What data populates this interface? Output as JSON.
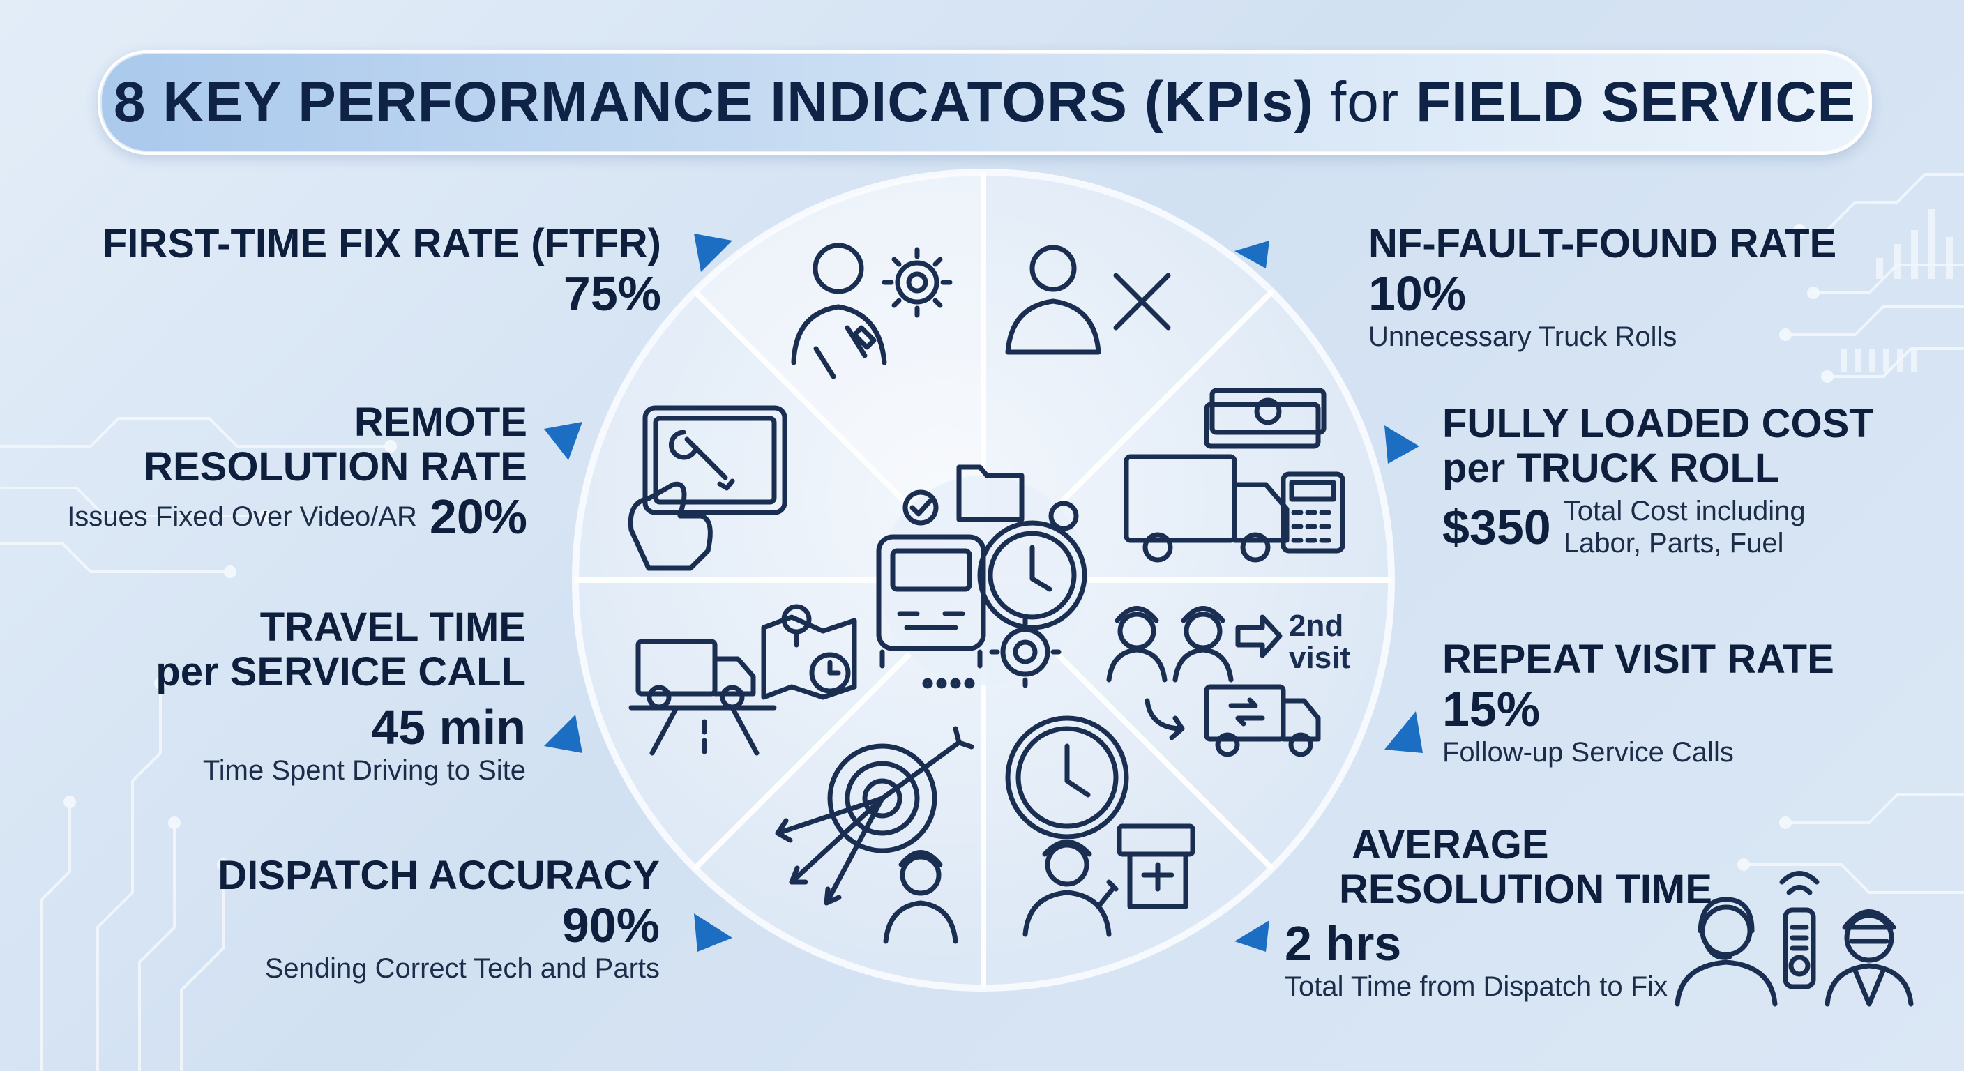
{
  "title": {
    "part1": "8 KEY PERFORMANCE INDICATORS (KPIs)",
    "part2": "for",
    "part3": "FIELD SERVICE"
  },
  "colors": {
    "accent": "#1b6ec2",
    "text": "#0d1f3c",
    "icon_stroke": "#1a2e52"
  },
  "kpis": {
    "ftfr": {
      "name": "FIRST-TIME FIX RATE (FTFR)",
      "value": "75%"
    },
    "remote": {
      "name1": "REMOTE",
      "name2": "RESOLUTION RATE",
      "desc": "Issues Fixed Over Video/AR",
      "value": "20%"
    },
    "travel": {
      "name1": "TRAVEL TIME",
      "name2": "per SERVICE CALL",
      "value": "45 min",
      "desc": "Time Spent Driving to Site"
    },
    "dispatch": {
      "name": "DISPATCH ACCURACY",
      "value": "90%",
      "desc": "Sending Correct Tech and Parts"
    },
    "nff": {
      "name": "NF-FAULT-FOUND RATE",
      "value": "10%",
      "desc": "Unnecessary Truck Rolls"
    },
    "cost": {
      "name1": "FULLY LOADED COST",
      "name2": "per TRUCK ROLL",
      "value": "$350",
      "desc1": "Total Cost including",
      "desc2": "Labor, Parts, Fuel"
    },
    "repeat": {
      "name": "REPEAT VISIT RATE",
      "value": "15%",
      "desc": "Follow-up Service Calls"
    },
    "resolution": {
      "name1": "AVERAGE",
      "name2": "RESOLUTION TIME",
      "value": "2 hrs",
      "desc": "Total Time from Dispatch to Fix"
    }
  },
  "wheel": {
    "second_visit_1": "2nd",
    "second_visit_2": "visit"
  },
  "icons": [
    "technician-gear-icon",
    "person-x-icon",
    "tablet-wrench-icon",
    "truck-money-calculator-icon",
    "truck-map-road-icon",
    "technicians-second-visit-icon",
    "target-arrows-technician-icon",
    "clock-technician-machine-icon",
    "truck-clock-center-icon",
    "support-agent-technician-icon"
  ]
}
